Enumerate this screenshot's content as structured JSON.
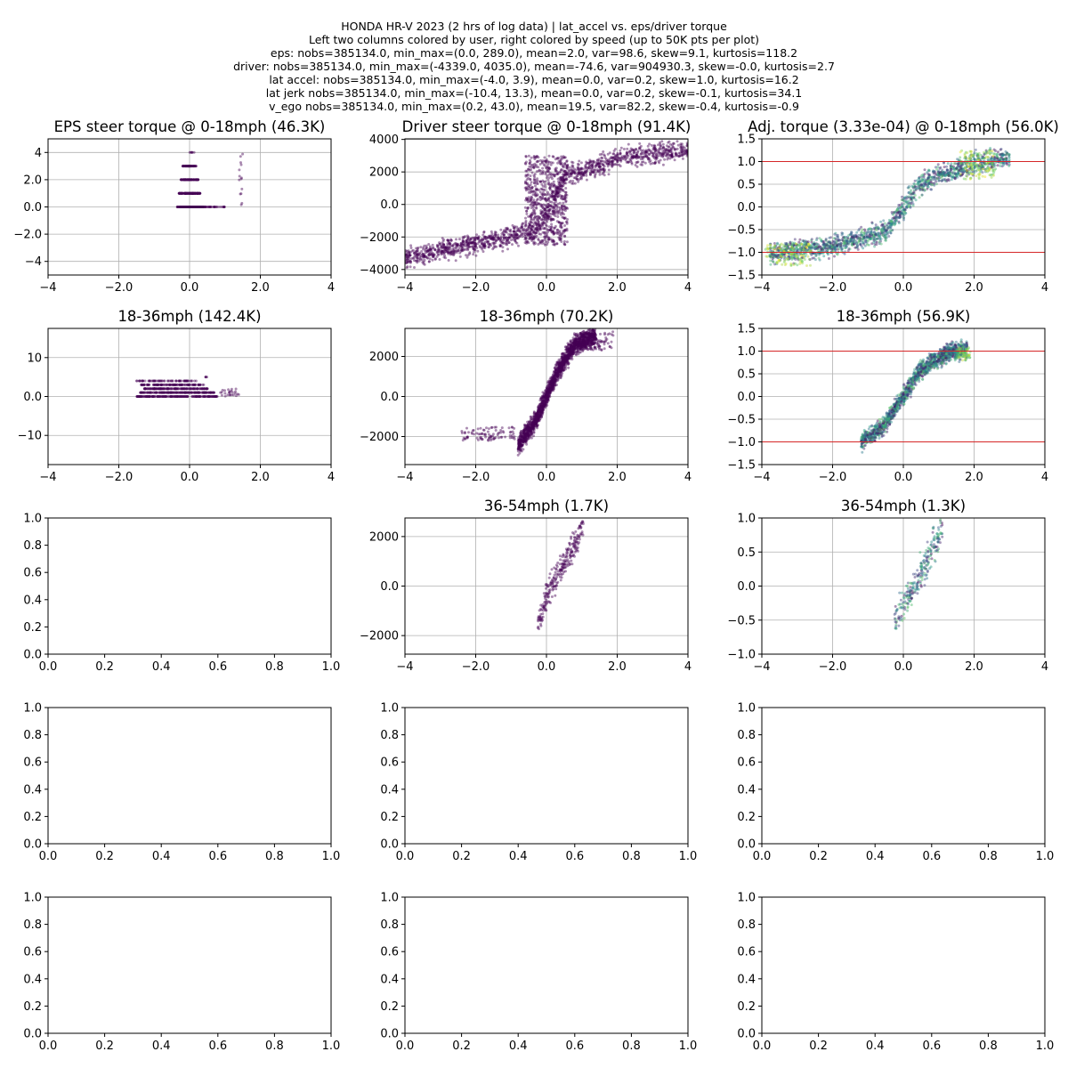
{
  "figure": {
    "suptitle": [
      "HONDA HR-V 2023 (2 hrs of log data) | lat_accel vs. eps/driver torque",
      "Left two columns colored by user, right colored by speed (up to 50K pts per plot)",
      "eps: nobs=385134.0, min_max=(0.0, 289.0), mean=2.0, var=98.6, skew=9.1, kurtosis=118.2",
      "driver: nobs=385134.0, min_max=(-4339.0, 4035.0), mean=-74.6, var=904930.3, skew=-0.0, kurtosis=2.7",
      "lat accel: nobs=385134.0, min_max=(-4.0, 3.9), mean=0.0, var=0.2, skew=1.0, kurtosis=16.2",
      "lat jerk nobs=385134.0, min_max=(-10.4, 13.3), mean=0.0, var=0.2, skew=-0.1, kurtosis=34.1",
      "v_ego nobs=385134.0, min_max=(0.2, 43.0), mean=19.5, var=82.2, skew=-0.4, kurtosis=-0.9"
    ],
    "colors": {
      "user": "#440154",
      "speed_colormap": [
        "#440154",
        "#3b528b",
        "#21918c",
        "#5ec962",
        "#fde725"
      ],
      "hline": "#d62728",
      "grid": "#b0b0b0"
    }
  },
  "chart_data": [
    {
      "id": "r0c0",
      "type": "scatter",
      "title": "EPS steer torque @ 0-18mph (46.3K)",
      "grid": true,
      "color_by": "user",
      "xlim": [
        -4,
        4
      ],
      "ylim": [
        -5,
        5
      ],
      "xticks": [
        -4,
        -2,
        0,
        2,
        4
      ],
      "yticks": [
        -4,
        -2,
        0,
        2,
        4
      ],
      "clusters": [
        {
          "x": [
            -0.35,
            0.4
          ],
          "y": [
            0,
            0
          ],
          "n": 220
        },
        {
          "x": [
            -0.3,
            0.3
          ],
          "y": [
            1,
            1
          ],
          "n": 160
        },
        {
          "x": [
            -0.25,
            0.25
          ],
          "y": [
            2,
            2
          ],
          "n": 100
        },
        {
          "x": [
            -0.2,
            0.2
          ],
          "y": [
            3,
            3
          ],
          "n": 60
        },
        {
          "x": [
            0.4,
            1.0
          ],
          "y": [
            0,
            0
          ],
          "n": 30
        },
        {
          "x": [
            1.4,
            1.5
          ],
          "y": [
            0,
            4
          ],
          "n": 14
        },
        {
          "x": [
            -0.15,
            0.15
          ],
          "y": [
            4,
            4
          ],
          "n": 6
        }
      ]
    },
    {
      "id": "r0c1",
      "type": "scatter",
      "title": "Driver steer torque @ 0-18mph (91.4K)",
      "grid": true,
      "color_by": "user",
      "xlim": [
        -4,
        4
      ],
      "ylim": [
        -4339,
        4035
      ],
      "xticks": [
        -4,
        -2,
        0,
        2,
        4
      ],
      "yticks": [
        -4000,
        -2000,
        0,
        2000,
        4000
      ],
      "clusters": [
        {
          "band": [
            [
              -4,
              -3300
            ],
            [
              -2,
              -2400
            ],
            [
              -0.5,
              -1700
            ],
            [
              0,
              -600
            ],
            [
              0.5,
              1700
            ],
            [
              2,
              2800
            ],
            [
              4,
              3400
            ]
          ],
          "spread": 900,
          "n": 1400
        },
        {
          "x": [
            -0.6,
            0.6
          ],
          "y": [
            -2500,
            3000
          ],
          "n": 700
        }
      ]
    },
    {
      "id": "r0c2",
      "type": "scatter",
      "title": "Adj. torque (3.33e-04) @ 0-18mph (56.0K)",
      "grid": true,
      "color_by": "speed",
      "xlim": [
        -4,
        4
      ],
      "ylim": [
        -1.5,
        1.5
      ],
      "xticks": [
        -4,
        -2,
        0,
        2,
        4
      ],
      "yticks": [
        -1.5,
        -1.0,
        -0.5,
        0.0,
        0.5,
        1.0,
        1.5
      ],
      "hlines": [
        -1,
        1
      ],
      "clusters": [
        {
          "band": [
            [
              -3.8,
              -1.05
            ],
            [
              -2,
              -0.85
            ],
            [
              -0.5,
              -0.55
            ],
            [
              0,
              0
            ],
            [
              0.5,
              0.55
            ],
            [
              2,
              0.95
            ],
            [
              3,
              1.1
            ]
          ],
          "spread": 0.32,
          "n": 1600
        },
        {
          "x": [
            -3.9,
            -2.6
          ],
          "y": [
            -1.3,
            -0.8
          ],
          "n": 120,
          "c": [
            0.7,
            1.0
          ]
        },
        {
          "x": [
            1.6,
            2.6
          ],
          "y": [
            0.6,
            1.25
          ],
          "n": 120,
          "c": [
            0.7,
            1.0
          ]
        }
      ]
    },
    {
      "id": "r1c0",
      "type": "scatter",
      "title": "18-36mph (142.4K)",
      "grid": true,
      "color_by": "user",
      "xlim": [
        -4,
        4
      ],
      "ylim": [
        -17.5,
        17.5
      ],
      "xticks": [
        -4,
        -2,
        0,
        2,
        4
      ],
      "yticks": [
        -10,
        0,
        10
      ],
      "clusters": [
        {
          "x": [
            -1.5,
            0.8
          ],
          "y": [
            0,
            0
          ],
          "n": 200
        },
        {
          "x": [
            -1.4,
            0.7
          ],
          "y": [
            1,
            1
          ],
          "n": 180
        },
        {
          "x": [
            -1.3,
            0.6
          ],
          "y": [
            2,
            2
          ],
          "n": 150
        },
        {
          "x": [
            -1.4,
            0.4
          ],
          "y": [
            3,
            3
          ],
          "n": 110
        },
        {
          "x": [
            -1.5,
            0.2
          ],
          "y": [
            4,
            4
          ],
          "n": 70
        },
        {
          "x": [
            0.8,
            1.4
          ],
          "y": [
            0,
            2
          ],
          "n": 25
        },
        {
          "x": [
            0.4,
            0.6
          ],
          "y": [
            5,
            5
          ],
          "n": 4
        }
      ]
    },
    {
      "id": "r1c1",
      "type": "scatter",
      "title": "18-36mph (70.2K)",
      "grid": true,
      "color_by": "user",
      "xlim": [
        -4,
        4
      ],
      "ylim": [
        -3400,
        3400
      ],
      "xticks": [
        -4,
        -2,
        0,
        2,
        4
      ],
      "yticks": [
        -2000,
        0,
        2000
      ],
      "clusters": [
        {
          "band": [
            [
              -0.8,
              -2400
            ],
            [
              -0.3,
              -1200
            ],
            [
              0,
              0
            ],
            [
              0.3,
              1200
            ],
            [
              0.8,
              2600
            ],
            [
              1.4,
              3000
            ]
          ],
          "spread": 700,
          "n": 1800
        },
        {
          "x": [
            -2.4,
            -0.9
          ],
          "y": [
            -2200,
            -1500
          ],
          "n": 90
        },
        {
          "x": [
            0.9,
            1.9
          ],
          "y": [
            2300,
            3250
          ],
          "n": 90
        }
      ]
    },
    {
      "id": "r1c2",
      "type": "scatter",
      "title": "18-36mph (56.9K)",
      "grid": true,
      "color_by": "speed",
      "xlim": [
        -4,
        4
      ],
      "ylim": [
        -1.5,
        1.5
      ],
      "xticks": [
        -4,
        -2,
        0,
        2,
        4
      ],
      "yticks": [
        -1.5,
        -1.0,
        -0.5,
        0.0,
        0.5,
        1.0,
        1.5
      ],
      "hlines": [
        -1,
        1
      ],
      "clusters": [
        {
          "band": [
            [
              -1.2,
              -1.0
            ],
            [
              -0.6,
              -0.7
            ],
            [
              0,
              0
            ],
            [
              0.5,
              0.6
            ],
            [
              1.2,
              0.95
            ],
            [
              1.8,
              1.05
            ]
          ],
          "spread": 0.28,
          "n": 1500
        },
        {
          "x": [
            1.5,
            1.9
          ],
          "y": [
            0.8,
            1.1
          ],
          "n": 60,
          "c": [
            0.65,
            0.95
          ]
        }
      ]
    },
    {
      "id": "r2c0",
      "type": "scatter",
      "title": "",
      "grid": false,
      "xlim": [
        0,
        1
      ],
      "ylim": [
        0,
        1
      ],
      "xticks": [
        0.0,
        0.2,
        0.4,
        0.6,
        0.8,
        1.0
      ],
      "yticks": [
        0.0,
        0.2,
        0.4,
        0.6,
        0.8,
        1.0
      ],
      "clusters": []
    },
    {
      "id": "r2c1",
      "type": "scatter",
      "title": "36-54mph (1.7K)",
      "grid": true,
      "color_by": "user",
      "xlim": [
        -4,
        4
      ],
      "ylim": [
        -2750,
        2750
      ],
      "xticks": [
        -4,
        -2,
        0,
        2,
        4
      ],
      "yticks": [
        -2000,
        0,
        2000
      ],
      "clusters": [
        {
          "band": [
            [
              -0.25,
              -1800
            ],
            [
              0,
              -300
            ],
            [
              0.4,
              700
            ],
            [
              0.8,
              1700
            ],
            [
              1.05,
              2600
            ]
          ],
          "spread": 800,
          "n": 260
        }
      ]
    },
    {
      "id": "r2c2",
      "type": "scatter",
      "title": "36-54mph (1.3K)",
      "grid": true,
      "color_by": "speed",
      "xlim": [
        -4,
        4
      ],
      "ylim": [
        -1,
        1
      ],
      "xticks": [
        -4,
        -2,
        0,
        2,
        4
      ],
      "yticks": [
        -1.0,
        -0.5,
        0.0,
        0.5,
        1.0
      ],
      "clusters": [
        {
          "band": [
            [
              -0.25,
              -0.5
            ],
            [
              0,
              -0.3
            ],
            [
              0.4,
              0.1
            ],
            [
              0.8,
              0.5
            ],
            [
              1.1,
              0.9
            ]
          ],
          "spread": 0.35,
          "n": 260
        }
      ]
    },
    {
      "id": "r3c0",
      "type": "scatter",
      "title": "",
      "grid": false,
      "xlim": [
        0,
        1
      ],
      "ylim": [
        0,
        1
      ],
      "xticks": [
        0.0,
        0.2,
        0.4,
        0.6,
        0.8,
        1.0
      ],
      "yticks": [
        0.0,
        0.2,
        0.4,
        0.6,
        0.8,
        1.0
      ],
      "clusters": []
    },
    {
      "id": "r3c1",
      "type": "scatter",
      "title": "",
      "grid": false,
      "xlim": [
        0,
        1
      ],
      "ylim": [
        0,
        1
      ],
      "xticks": [
        0.0,
        0.2,
        0.4,
        0.6,
        0.8,
        1.0
      ],
      "yticks": [
        0.0,
        0.2,
        0.4,
        0.6,
        0.8,
        1.0
      ],
      "clusters": []
    },
    {
      "id": "r3c2",
      "type": "scatter",
      "title": "",
      "grid": false,
      "xlim": [
        0,
        1
      ],
      "ylim": [
        0,
        1
      ],
      "xticks": [
        0.0,
        0.2,
        0.4,
        0.6,
        0.8,
        1.0
      ],
      "yticks": [
        0.0,
        0.2,
        0.4,
        0.6,
        0.8,
        1.0
      ],
      "clusters": []
    },
    {
      "id": "r4c0",
      "type": "scatter",
      "title": "",
      "grid": false,
      "xlim": [
        0,
        1
      ],
      "ylim": [
        0,
        1
      ],
      "xticks": [
        0.0,
        0.2,
        0.4,
        0.6,
        0.8,
        1.0
      ],
      "yticks": [
        0.0,
        0.2,
        0.4,
        0.6,
        0.8,
        1.0
      ],
      "clusters": []
    },
    {
      "id": "r4c1",
      "type": "scatter",
      "title": "",
      "grid": false,
      "xlim": [
        0,
        1
      ],
      "ylim": [
        0,
        1
      ],
      "xticks": [
        0.0,
        0.2,
        0.4,
        0.6,
        0.8,
        1.0
      ],
      "yticks": [
        0.0,
        0.2,
        0.4,
        0.6,
        0.8,
        1.0
      ],
      "clusters": []
    },
    {
      "id": "r4c2",
      "type": "scatter",
      "title": "",
      "grid": false,
      "xlim": [
        0,
        1
      ],
      "ylim": [
        0,
        1
      ],
      "xticks": [
        0.0,
        0.2,
        0.4,
        0.6,
        0.8,
        1.0
      ],
      "yticks": [
        0.0,
        0.2,
        0.4,
        0.6,
        0.8,
        1.0
      ],
      "clusters": []
    }
  ]
}
